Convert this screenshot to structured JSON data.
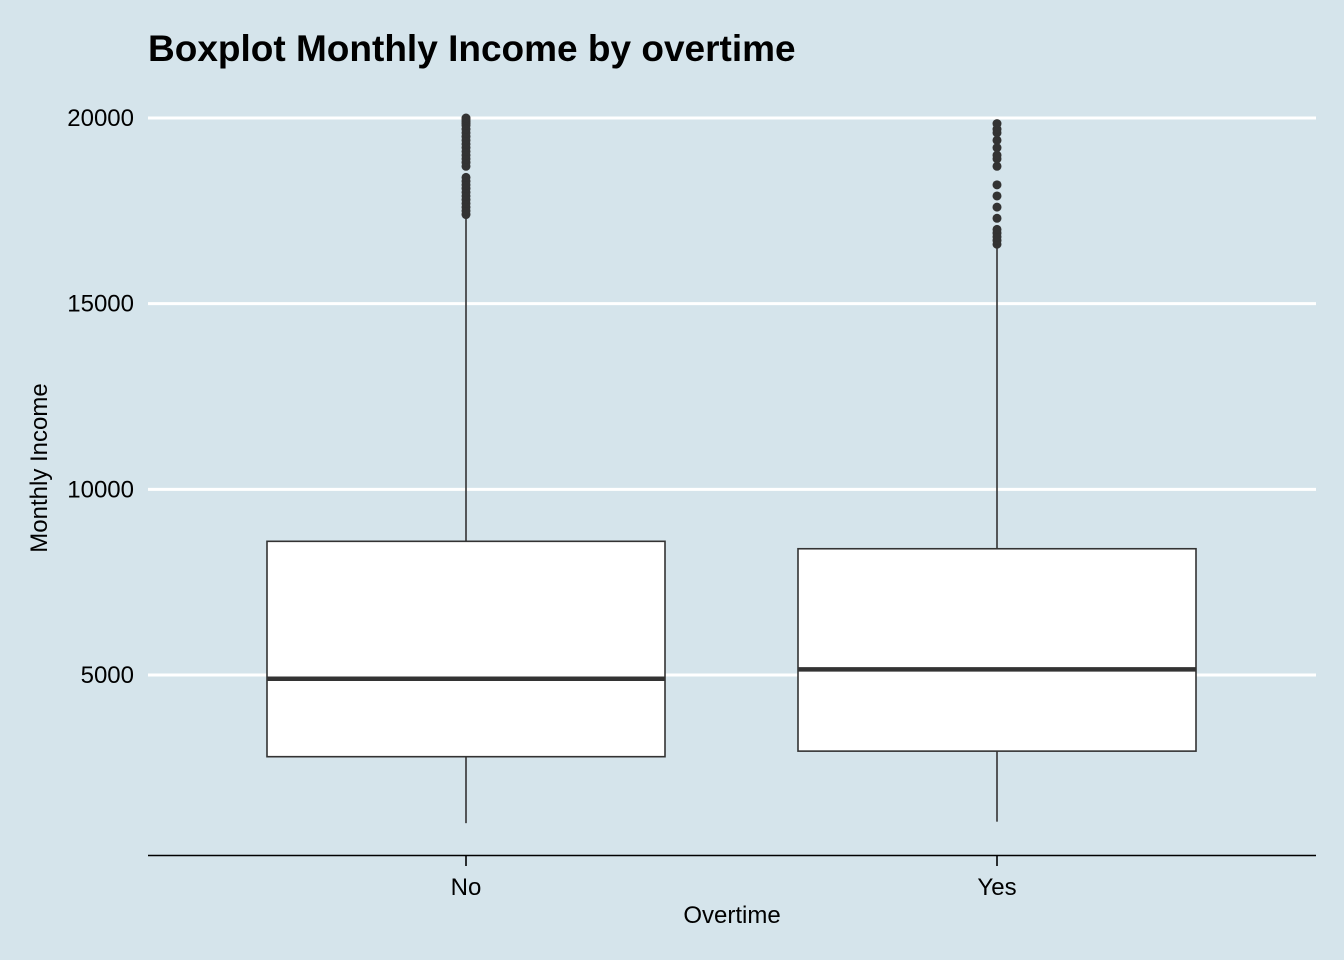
{
  "chart_data": {
    "type": "boxplot",
    "title": "Boxplot Monthly Income by overtime",
    "xlabel": "Overtime",
    "ylabel": "Monthly Income",
    "categories": [
      "No",
      "Yes"
    ],
    "y_ticks": [
      {
        "value": 5000,
        "label": "5000"
      },
      {
        "value": 10000,
        "label": "10000"
      },
      {
        "value": 15000,
        "label": "15000"
      },
      {
        "value": 20000,
        "label": "20000"
      }
    ],
    "ylim": [
      0,
      20000
    ],
    "grid": "horizontal major lines",
    "boxes": [
      {
        "category": "No",
        "whisker_low": 1010,
        "q1": 2800,
        "median": 4900,
        "q3": 8600,
        "whisker_high": 17300,
        "outliers": [
          17400,
          17500,
          17600,
          17700,
          17800,
          17900,
          18000,
          18100,
          18200,
          18300,
          18400,
          18700,
          18800,
          18900,
          19000,
          19100,
          19200,
          19300,
          19400,
          19500,
          19600,
          19700,
          19800,
          19850,
          19900,
          19950,
          20000
        ]
      },
      {
        "category": "Yes",
        "whisker_low": 1050,
        "q1": 2950,
        "median": 5150,
        "q3": 8400,
        "whisker_high": 16550,
        "outliers": [
          16600,
          16700,
          16800,
          16900,
          17000,
          17300,
          17600,
          17900,
          18200,
          18700,
          18900,
          19000,
          19200,
          19400,
          19600,
          19700,
          19850
        ]
      }
    ],
    "colors": {
      "background": "#d5e4eb",
      "box_fill": "#ffffff",
      "box_stroke": "#333333",
      "gridline": "#ffffff",
      "text": "#000000"
    }
  }
}
